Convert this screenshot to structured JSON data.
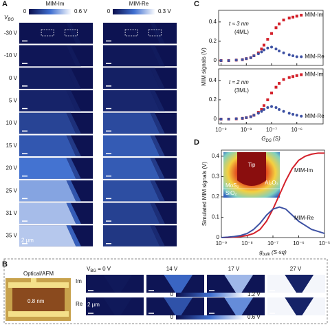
{
  "panel_labels": [
    "A",
    "B",
    "C",
    "D"
  ],
  "panel_a": {
    "vbg": [
      "V",
      "BG"
    ],
    "colorbars": [
      {
        "title": "MIM-Im",
        "min": "0",
        "max": "0.6 V"
      },
      {
        "title": "MIM-Re",
        "min": "0",
        "max": "0.3 V"
      }
    ],
    "rows": [
      "-30 V",
      "-10 V",
      "0 V",
      "5 V",
      "10 V",
      "15 V",
      "20 V",
      "25 V",
      "31 V",
      "35 V"
    ],
    "scale": "2 μm"
  },
  "panel_b": {
    "optical": "Optical/AFM",
    "afm_scale": "0.8 nm",
    "row_labels": [
      "Im",
      "Re"
    ],
    "vbg": [
      "V",
      "BG",
      " = 0 V"
    ],
    "columns": [
      "14 V",
      "17 V",
      "27 V"
    ],
    "colorbars": [
      {
        "min": "0",
        "max": "1.2 V"
      },
      {
        "min": "0",
        "max": "0.6 V"
      }
    ],
    "scale": "2 μm"
  },
  "chart_data": [
    {
      "type": "scatter",
      "ylabel": "MIM signals (V)",
      "annotations": [
        "t ≈ 3 nm",
        "(4ML)"
      ],
      "xscale": "log",
      "x": [
        1e-09,
        2e-09,
        4e-09,
        7e-09,
        1e-08,
        1.5e-08,
        2e-08,
        3e-08,
        4e-08,
        5e-08,
        7e-08,
        1e-07,
        1.5e-07,
        2e-07,
        3e-07,
        5e-07,
        7e-07,
        1e-06,
        1.5e-06
      ],
      "xlim": [
        8e-10,
        1.1e-05
      ],
      "xticks": [
        1e-09,
        1e-08,
        1e-07,
        1e-06
      ],
      "ylim": [
        -0.05,
        0.52
      ],
      "yticks": [
        0,
        0.2,
        0.4
      ],
      "series": [
        {
          "name": "MIM-Im",
          "color": "#d3202a",
          "marker": "square",
          "values": [
            0,
            0,
            0.005,
            0.01,
            0.02,
            0.03,
            0.05,
            0.08,
            0.12,
            0.16,
            0.22,
            0.28,
            0.34,
            0.38,
            0.42,
            0.44,
            0.45,
            0.46,
            0.47
          ]
        },
        {
          "name": "MIM-Re",
          "color": "#3d51a3",
          "marker": "circle",
          "values": [
            0,
            0,
            0.005,
            0.01,
            0.02,
            0.03,
            0.05,
            0.07,
            0.09,
            0.11,
            0.13,
            0.14,
            0.12,
            0.1,
            0.08,
            0.06,
            0.05,
            0.04,
            0.04
          ]
        }
      ]
    },
    {
      "type": "scatter",
      "annotations": [
        "t ≈ 2 nm",
        "(3ML)"
      ],
      "xscale": "log",
      "xlabel": [
        "G",
        "DS",
        " (S)"
      ],
      "x": [
        1e-09,
        2e-09,
        4e-09,
        7e-09,
        1e-08,
        1.5e-08,
        2e-08,
        3e-08,
        4e-08,
        5e-08,
        7e-08,
        1e-07,
        1.5e-07,
        2e-07,
        3e-07,
        5e-07,
        7e-07,
        1e-06,
        1.5e-06
      ],
      "xlim": [
        8e-10,
        1.1e-05
      ],
      "xticks": [
        {
          "value": 1e-09,
          "label": "10⁻⁹"
        },
        {
          "value": 1e-08,
          "label": "10⁻⁸"
        },
        {
          "value": 1e-07,
          "label": "10⁻⁷"
        },
        {
          "value": 1e-06,
          "label": "10⁻⁶"
        }
      ],
      "ylim": [
        -0.05,
        0.52
      ],
      "yticks": [
        0,
        0.2,
        0.4
      ],
      "series": [
        {
          "name": "MIM-Im",
          "color": "#d3202a",
          "marker": "square",
          "values": [
            0,
            0,
            0.003,
            0.008,
            0.015,
            0.025,
            0.04,
            0.07,
            0.1,
            0.14,
            0.2,
            0.27,
            0.33,
            0.37,
            0.41,
            0.43,
            0.44,
            0.45,
            0.46
          ]
        },
        {
          "name": "MIM-Re",
          "color": "#3d51a3",
          "marker": "circle",
          "values": [
            0,
            0,
            0.004,
            0.008,
            0.015,
            0.025,
            0.04,
            0.06,
            0.08,
            0.1,
            0.12,
            0.13,
            0.12,
            0.1,
            0.08,
            0.06,
            0.05,
            0.04,
            0.03
          ]
        }
      ]
    },
    {
      "type": "line",
      "ylabel": "Simulated MIM signals (V)",
      "xlabel": [
        "g",
        "bulk",
        " (S·sq)"
      ],
      "xscale": "log",
      "inset": [
        "Tip",
        "Al₂O₃",
        "MoS₂",
        "SiO₂"
      ],
      "x": [
        1e-09,
        1.78e-09,
        3.16e-09,
        5.62e-09,
        1e-08,
        1.78e-08,
        3.16e-08,
        5.62e-08,
        1e-07,
        1.78e-07,
        3.16e-07,
        5.62e-07,
        1e-06,
        1.78e-06,
        3.16e-06,
        5.62e-06,
        1e-05
      ],
      "xlim": [
        1e-09,
        1e-05
      ],
      "xticks": [
        {
          "value": 1e-09,
          "label": "10⁻⁹"
        },
        {
          "value": 1e-08,
          "label": "10⁻⁸"
        },
        {
          "value": 1e-07,
          "label": "10⁻⁷"
        },
        {
          "value": 1e-06,
          "label": "10⁻⁶"
        },
        {
          "value": 1e-05,
          "label": "10⁻⁵"
        }
      ],
      "ylim": [
        0,
        0.43
      ],
      "yticks": [
        0,
        0.1,
        0.2,
        0.3,
        0.4
      ],
      "series": [
        {
          "name": "MIM-Im",
          "color": "#d3202a",
          "values": [
            0,
            0,
            0.002,
            0.005,
            0.01,
            0.02,
            0.04,
            0.08,
            0.14,
            0.21,
            0.28,
            0.34,
            0.38,
            0.4,
            0.41,
            0.415,
            0.415
          ]
        },
        {
          "name": "MIM-Re",
          "color": "#3d51a3",
          "values": [
            0,
            0.002,
            0.005,
            0.01,
            0.02,
            0.04,
            0.07,
            0.11,
            0.14,
            0.15,
            0.14,
            0.11,
            0.08,
            0.06,
            0.04,
            0.03,
            0.02
          ]
        }
      ]
    }
  ]
}
